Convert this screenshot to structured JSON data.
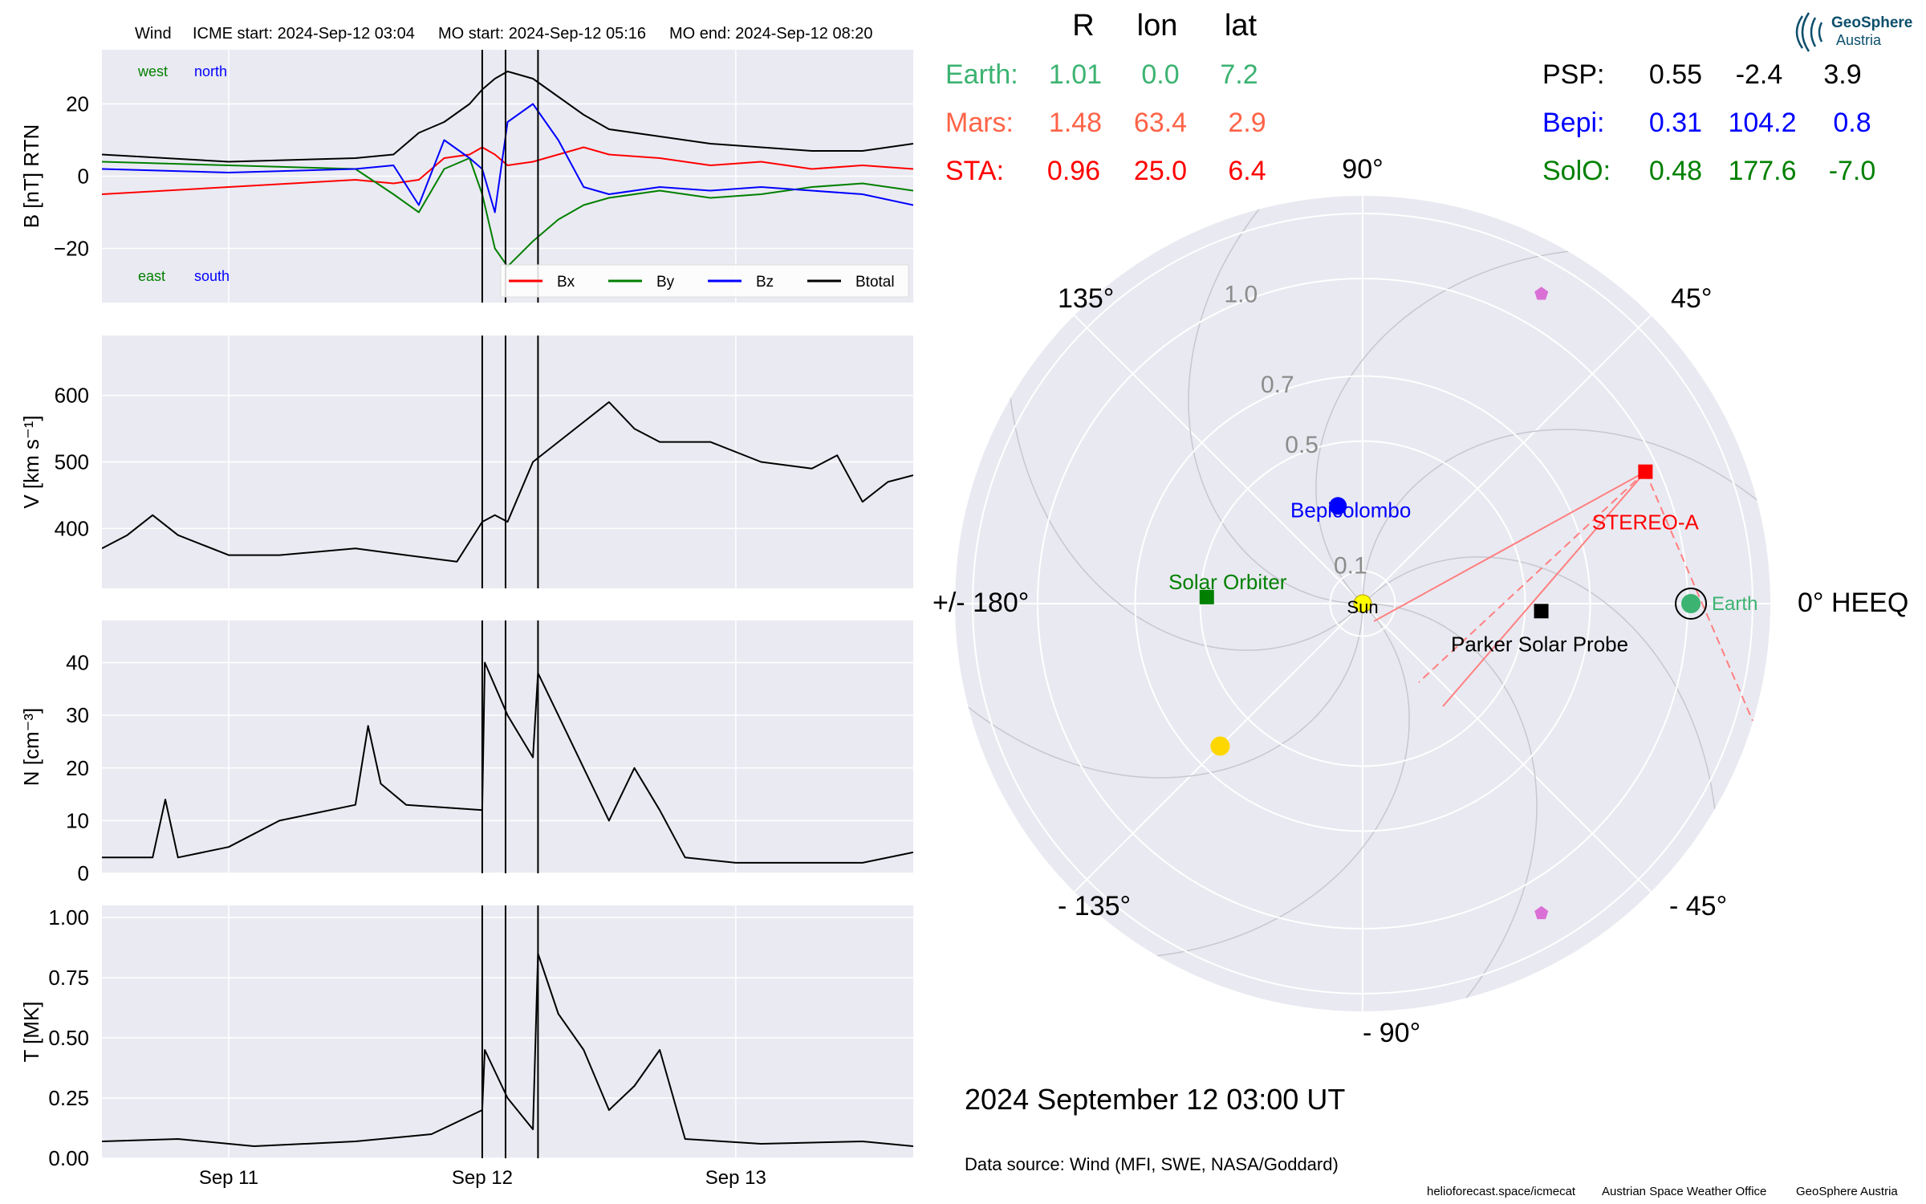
{
  "header": {
    "spacecraft": "Wind",
    "icme_start": "ICME start: 2024-Sep-12 03:04",
    "mo_start": "MO start: 2024-Sep-12 05:16",
    "mo_end": "MO end: 2024-Sep-12 08:20"
  },
  "colors": {
    "bx": "#ff0000",
    "by": "#008000",
    "bz": "#0000ff",
    "btotal": "#000000",
    "earth": "#3cb371",
    "mars": "#ff6347",
    "sta": "#ff0000",
    "psp": "#000000",
    "bepi": "#0000ff",
    "solo": "#008000",
    "panel_bg": "#eaeaf2",
    "polar_bg": "#e9e9f1"
  },
  "chart_data": [
    {
      "type": "line",
      "panel": "magnetic-field",
      "ylabel": "B [nT] RTN",
      "ylim": [
        -35,
        35
      ],
      "yticks": [
        "20",
        "0",
        "−20"
      ],
      "ytick_values": [
        20,
        0,
        -20
      ],
      "corner_labels": {
        "top_left": [
          "west",
          "north"
        ],
        "bottom_left": [
          "east",
          "south"
        ]
      },
      "legend": [
        "Bx",
        "By",
        "Bz",
        "Btotal"
      ],
      "legend_position": "lower-right",
      "x": [
        0,
        0.5,
        1.0,
        1.15,
        1.25,
        1.35,
        1.45,
        1.5,
        1.55,
        1.6,
        1.7,
        1.8,
        1.9,
        2.0,
        2.2,
        2.4,
        2.6,
        2.8,
        3.0,
        3.2
      ],
      "series": [
        {
          "name": "Bx",
          "values": [
            -5,
            -3,
            -1,
            -2,
            -1,
            5,
            6,
            8,
            6,
            3,
            4,
            6,
            8,
            6,
            5,
            3,
            4,
            2,
            3,
            2
          ]
        },
        {
          "name": "By",
          "values": [
            4,
            3,
            2,
            -5,
            -10,
            2,
            5,
            -5,
            -20,
            -25,
            -18,
            -12,
            -8,
            -6,
            -4,
            -6,
            -5,
            -3,
            -2,
            -4
          ]
        },
        {
          "name": "Bz",
          "values": [
            2,
            1,
            2,
            3,
            -8,
            10,
            5,
            2,
            -10,
            15,
            20,
            10,
            -3,
            -5,
            -3,
            -4,
            -3,
            -4,
            -5,
            -8
          ]
        },
        {
          "name": "Btotal",
          "values": [
            6,
            4,
            5,
            6,
            12,
            15,
            20,
            24,
            27,
            29,
            27,
            22,
            17,
            13,
            11,
            9,
            8,
            7,
            7,
            9
          ]
        }
      ]
    },
    {
      "type": "line",
      "panel": "speed",
      "ylabel": "V [km s⁻¹]",
      "ylim": [
        310,
        690
      ],
      "yticks": [
        "600",
        "500",
        "400"
      ],
      "ytick_values": [
        600,
        500,
        400
      ],
      "x": [
        0,
        0.1,
        0.2,
        0.3,
        0.5,
        0.7,
        1.0,
        1.2,
        1.4,
        1.5,
        1.55,
        1.6,
        1.7,
        1.8,
        2.0,
        2.1,
        2.2,
        2.4,
        2.6,
        2.8,
        2.9,
        3.0,
        3.1,
        3.2
      ],
      "series": [
        {
          "name": "V",
          "values": [
            370,
            390,
            420,
            390,
            360,
            360,
            370,
            360,
            350,
            410,
            420,
            410,
            500,
            530,
            590,
            550,
            530,
            530,
            500,
            490,
            510,
            440,
            470,
            480
          ]
        }
      ]
    },
    {
      "type": "line",
      "panel": "density",
      "ylabel": "N [cm⁻³]",
      "ylim": [
        0,
        48
      ],
      "yticks": [
        "40",
        "30",
        "20",
        "10",
        "0"
      ],
      "ytick_values": [
        40,
        30,
        20,
        10,
        0
      ],
      "x": [
        0,
        0.2,
        0.25,
        0.3,
        0.5,
        0.7,
        1.0,
        1.05,
        1.1,
        1.2,
        1.5,
        1.51,
        1.6,
        1.7,
        1.72,
        1.8,
        1.9,
        2.0,
        2.1,
        2.2,
        2.3,
        2.5,
        3.0,
        3.2
      ],
      "series": [
        {
          "name": "N",
          "values": [
            3,
            3,
            14,
            3,
            5,
            10,
            13,
            28,
            17,
            13,
            12,
            40,
            30,
            22,
            38,
            30,
            20,
            10,
            20,
            12,
            3,
            2,
            2,
            4
          ]
        }
      ]
    },
    {
      "type": "line",
      "panel": "temperature",
      "ylabel": "T [MK]",
      "ylim": [
        0,
        1.05
      ],
      "yticks": [
        "1.00",
        "0.75",
        "0.50",
        "0.25",
        "0.00"
      ],
      "ytick_values": [
        1.0,
        0.75,
        0.5,
        0.25,
        0.0
      ],
      "x": [
        0,
        0.3,
        0.6,
        1.0,
        1.3,
        1.5,
        1.51,
        1.6,
        1.7,
        1.72,
        1.8,
        1.9,
        2.0,
        2.1,
        2.2,
        2.3,
        2.6,
        3.0,
        3.2
      ],
      "series": [
        {
          "name": "T",
          "values": [
            0.07,
            0.08,
            0.05,
            0.07,
            0.1,
            0.2,
            0.45,
            0.25,
            0.12,
            0.85,
            0.6,
            0.45,
            0.2,
            0.3,
            0.45,
            0.08,
            0.06,
            0.07,
            0.05
          ]
        }
      ]
    },
    {
      "type": "scatter",
      "panel": "polar-orbit-plot",
      "r_ticks": [
        "0.1",
        "0.5",
        "0.7",
        "1.0"
      ],
      "r_tick_values": [
        0.1,
        0.5,
        0.7,
        1.0
      ],
      "angle_labels": {
        "0": "0° HEEQ",
        "45": "45°",
        "90": "90°",
        "135": "135°",
        "180": "+/- 180°",
        "-135": "- 135°",
        "-90": "- 90°",
        "-45": "- 45°"
      },
      "points": [
        {
          "name": "Earth",
          "r": 1.01,
          "lon": 0.0
        },
        {
          "name": "STEREO-A",
          "r": 0.96,
          "lon": 25.0
        },
        {
          "name": "Parker Solar Probe",
          "r": 0.55,
          "lon": -2.4
        },
        {
          "name": "Bepicolombo",
          "r": 0.31,
          "lon": 104.2
        },
        {
          "name": "Solar Orbiter",
          "r": 0.48,
          "lon": 177.6
        },
        {
          "name": "Sun",
          "r": 0.0,
          "lon": 0.0
        }
      ],
      "extra_markers": [
        {
          "kind": "planet",
          "r": 0.62,
          "lon": -135
        },
        {
          "kind": "pentagon",
          "r": 1.1,
          "lon": 60
        },
        {
          "kind": "pentagon",
          "r": 1.1,
          "lon": -60
        }
      ]
    }
  ],
  "x_axis": {
    "ticks": [
      "Sep 11",
      "Sep 12",
      "Sep 13"
    ],
    "tick_values": [
      0.5,
      1.5,
      2.5
    ],
    "range": [
      0,
      3.2
    ],
    "event_lines": [
      1.5,
      1.592,
      1.72
    ]
  },
  "position_table": {
    "headers": [
      "R",
      "lon",
      "lat"
    ],
    "rows_left": [
      {
        "name": "Earth:",
        "r": "1.01",
        "lon": "0.0",
        "lat": "7.2"
      },
      {
        "name": "Mars:",
        "r": "1.48",
        "lon": "63.4",
        "lat": "2.9"
      },
      {
        "name": "STA:",
        "r": "0.96",
        "lon": "25.0",
        "lat": "6.4"
      }
    ],
    "rows_right": [
      {
        "name": "PSP:",
        "r": "0.55",
        "lon": "-2.4",
        "lat": "3.9"
      },
      {
        "name": "Bepi:",
        "r": "0.31",
        "lon": "104.2",
        "lat": "0.8"
      },
      {
        "name": "SolO:",
        "r": "0.48",
        "lon": "177.6",
        "lat": "-7.0"
      }
    ]
  },
  "logo": {
    "line1": "GeoSphere",
    "line2": "Austria"
  },
  "date_label": "2024 September 12  03:00 UT",
  "data_source": "Data source: Wind (MFI, SWE, NASA/Goddard)",
  "footer": {
    "url": "helioforecast.space/icmecat",
    "office": "Austrian Space Weather Office",
    "org": "GeoSphere Austria"
  }
}
